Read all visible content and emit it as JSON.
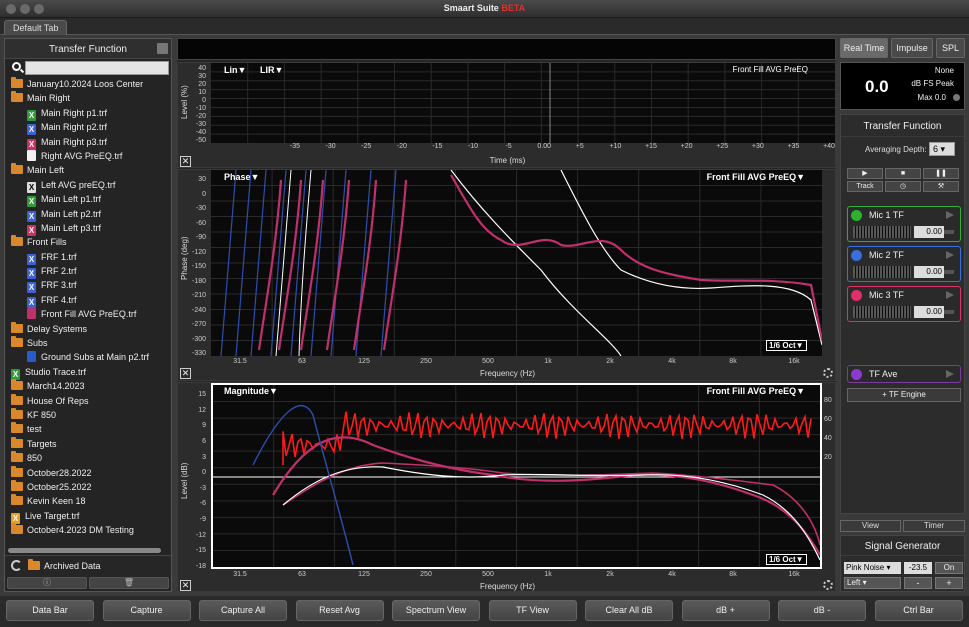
{
  "window": {
    "title": "Smaart Suite",
    "badge": "BETA",
    "tab": "Default Tab"
  },
  "sidebar": {
    "title": "Transfer Function",
    "items": [
      {
        "label": "January10.2024 Loos Center",
        "type": "folder",
        "indent": 0
      },
      {
        "label": "Main Right",
        "type": "folder",
        "indent": 0
      },
      {
        "label": "Main Right p1.trf",
        "type": "green",
        "indent": 1
      },
      {
        "label": "Main Right p2.trf",
        "type": "blue",
        "indent": 1
      },
      {
        "label": "Main Right p3.trf",
        "type": "pink",
        "indent": 1
      },
      {
        "label": "Right AVG PreEQ.trf",
        "type": "white",
        "indent": 1
      },
      {
        "label": "Main Left",
        "type": "folder",
        "indent": 0
      },
      {
        "label": "Left AVG preEQ.trf",
        "type": "whitex",
        "indent": 1
      },
      {
        "label": "Main Left p1.trf",
        "type": "green",
        "indent": 1
      },
      {
        "label": "Main Left p2.trf",
        "type": "blue",
        "indent": 1
      },
      {
        "label": "Main Left p3.trf",
        "type": "pink",
        "indent": 1
      },
      {
        "label": "Front Fills",
        "type": "folder",
        "indent": 0
      },
      {
        "label": "FRF 1.trf",
        "type": "blue",
        "indent": 1
      },
      {
        "label": "FRF 2.trf",
        "type": "blue",
        "indent": 1
      },
      {
        "label": "FRF 3.trf",
        "type": "blue",
        "indent": 1
      },
      {
        "label": "FRF 4.trf",
        "type": "blue",
        "indent": 1
      },
      {
        "label": "Front Fill AVG PreEQ.trf",
        "type": "pinkdoc",
        "indent": 1
      },
      {
        "label": "Delay Systems",
        "type": "folder",
        "indent": 0
      },
      {
        "label": "Subs",
        "type": "folder",
        "indent": 0
      },
      {
        "label": "Ground Subs at Main p2.trf",
        "type": "bluedoc",
        "indent": 1
      },
      {
        "label": "Studio Trace.trf",
        "type": "green",
        "indent": 0
      },
      {
        "label": "March14.2023",
        "type": "folder",
        "indent": 0
      },
      {
        "label": "House Of Reps",
        "type": "folder",
        "indent": 0
      },
      {
        "label": "KF 850",
        "type": "folder",
        "indent": 0
      },
      {
        "label": "test",
        "type": "folder",
        "indent": 0
      },
      {
        "label": "Targets",
        "type": "folder",
        "indent": 0
      },
      {
        "label": "850",
        "type": "folder",
        "indent": 0
      },
      {
        "label": "October28.2022",
        "type": "folder",
        "indent": 0
      },
      {
        "label": "October25.2022",
        "type": "folder",
        "indent": 0
      },
      {
        "label": "Kevin Keen 18",
        "type": "folder",
        "indent": 0
      },
      {
        "label": "Live Target.trf",
        "type": "orange",
        "indent": 0
      },
      {
        "label": "October4.2023 DM Testing",
        "type": "folder",
        "indent": 0
      }
    ],
    "archived": "Archived Data"
  },
  "impulse": {
    "lin": "Lin▼",
    "lir": "LIR▼",
    "title": "Front Fill AVG PreEQ",
    "ylabel": "Level (%)",
    "xlabel": "Time (ms)",
    "yticks": [
      "40",
      "30",
      "20",
      "10",
      "0",
      "-10",
      "-20",
      "-30",
      "-40",
      "-50"
    ],
    "xticks": [
      "-35",
      "-30",
      "-25",
      "-20",
      "-15",
      "-10",
      "-5",
      "0.00",
      "+5",
      "+10",
      "+15",
      "+20",
      "+25",
      "+30",
      "+35",
      "+40"
    ]
  },
  "phase": {
    "title": "Phase▼",
    "trace": "Front Fill AVG PreEQ▼",
    "oct": "1/6 Oct▼",
    "ylabel": "Phase (deg)",
    "xlabel": "Frequency (Hz)",
    "yticks": [
      "30",
      "0",
      "-30",
      "-60",
      "-90",
      "-120",
      "-150",
      "-180",
      "-210",
      "-240",
      "-270",
      "-300",
      "-330"
    ],
    "xticks": [
      "31.5",
      "63",
      "125",
      "250",
      "500",
      "1k",
      "2k",
      "4k",
      "8k",
      "16k"
    ]
  },
  "magnitude": {
    "title": "Magnitude▼",
    "trace": "Front Fill AVG PreEQ▼",
    "oct": "1/6 Oct▼",
    "ylabel": "Level (dB)",
    "xlabel": "Frequency (Hz)",
    "yticks": [
      "15",
      "12",
      "9",
      "6",
      "3",
      "0",
      "-3",
      "-6",
      "-9",
      "-12",
      "-15",
      "-18"
    ],
    "rticks": [
      "80",
      "60",
      "40",
      "20"
    ],
    "xticks": [
      "31.5",
      "63",
      "125",
      "250",
      "500",
      "1k",
      "2k",
      "4k",
      "8k",
      "16k"
    ]
  },
  "right": {
    "modes": [
      "Real Time",
      "Impulse",
      "SPL"
    ],
    "meter": {
      "value": "0.0",
      "weighting": "None",
      "unit": "dB FS Peak",
      "max": "Max 0.0"
    },
    "tf": {
      "title": "Transfer Function",
      "avg_label": "Averaging Depth:",
      "avg_value": "6"
    },
    "transport": {
      "track": "Track"
    },
    "mics": [
      {
        "name": "Mic 1 TF",
        "value": "0.00",
        "color": "#2fb12f"
      },
      {
        "name": "Mic 2 TF",
        "value": "0.00",
        "color": "#3a6fe0"
      },
      {
        "name": "Mic 3 TF",
        "value": "0.00",
        "color": "#e0306a"
      }
    ],
    "tfave": "TF Ave",
    "engine": "+ TF Engine",
    "view": "View",
    "timer": "Timer",
    "sig": {
      "title": "Signal Generator",
      "type": "Pink Noise",
      "level": "-23.5",
      "on": "On",
      "chan": "Left",
      "minus": "-",
      "plus": "+"
    }
  },
  "bottom": [
    "Data Bar",
    "Capture",
    "Capture All",
    "Reset Avg",
    "Spectrum View",
    "TF View",
    "Clear All dB",
    "dB +",
    "dB -",
    "Ctrl Bar"
  ]
}
